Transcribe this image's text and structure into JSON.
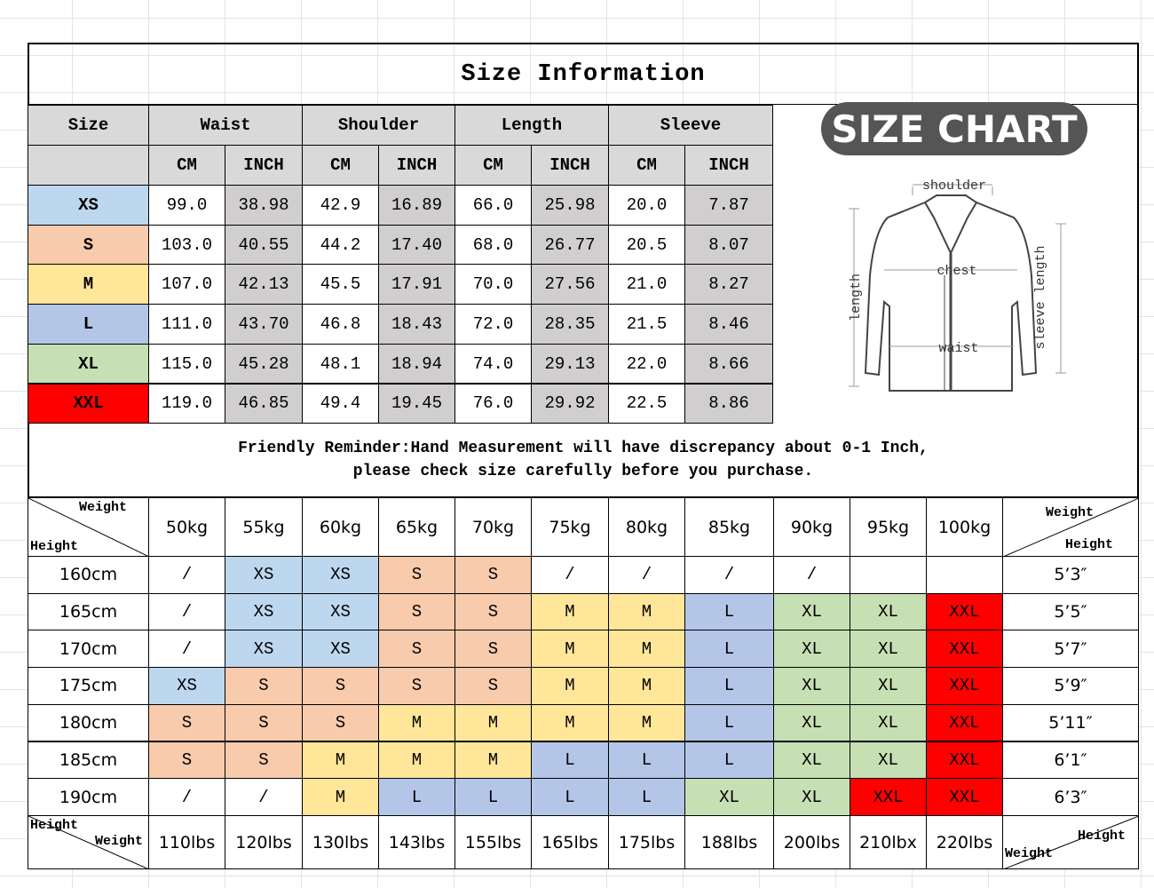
{
  "title": "Size Information",
  "badge": "SIZE CHART",
  "diagram": {
    "shoulder": "shoulder",
    "chest": "chest",
    "waist": "waist",
    "length": "length",
    "sleeve": "sleeve length"
  },
  "size_colors": {
    "XS": "#bdd7ee",
    "S": "#f8cbad",
    "M": "#ffe699",
    "L": "#b4c6e7",
    "XL": "#c6e0b4",
    "XXL": "#ff0000"
  },
  "size_table": {
    "header": [
      "Size",
      "Waist",
      "Shoulder",
      "Length",
      "Sleeve"
    ],
    "units": [
      "CM",
      "INCH",
      "CM",
      "INCH",
      "CM",
      "INCH",
      "CM",
      "INCH"
    ],
    "rows": [
      [
        "XS",
        "99.0",
        "38.98",
        "42.9",
        "16.89",
        "66.0",
        "25.98",
        "20.0",
        "7.87"
      ],
      [
        "S",
        "103.0",
        "40.55",
        "44.2",
        "17.40",
        "68.0",
        "26.77",
        "20.5",
        "8.07"
      ],
      [
        "M",
        "107.0",
        "42.13",
        "45.5",
        "17.91",
        "70.0",
        "27.56",
        "21.0",
        "8.27"
      ],
      [
        "L",
        "111.0",
        "43.70",
        "46.8",
        "18.43",
        "72.0",
        "28.35",
        "21.5",
        "8.46"
      ],
      [
        "XL",
        "115.0",
        "45.28",
        "48.1",
        "18.94",
        "74.0",
        "29.13",
        "22.0",
        "8.66"
      ],
      [
        "XXL",
        "119.0",
        "46.85",
        "49.4",
        "19.45",
        "76.0",
        "29.92",
        "22.5",
        "8.86"
      ]
    ]
  },
  "reminder": [
    "Friendly Reminder:Hand Measurement will have discrepancy about 0-1 Inch,",
    "please check size carefully before you purchase."
  ],
  "fit_table": {
    "corners": [
      {
        "top": "Weight",
        "bottom": "Height"
      },
      {
        "top": "Weight",
        "bottom": "Height"
      },
      {
        "top": "Height",
        "bottom": "Weight"
      },
      {
        "top": "Height",
        "bottom": "Weight"
      }
    ],
    "weights_kg": [
      "50kg",
      "55kg",
      "60kg",
      "65kg",
      "70kg",
      "75kg",
      "80kg",
      "85kg",
      "90kg",
      "95kg",
      "100kg"
    ],
    "rows": [
      {
        "height": "160cm",
        "sizes": [
          "/",
          "XS",
          "XS",
          "S",
          "S",
          "/",
          "/",
          "/",
          "/",
          null,
          null
        ],
        "feet": "5’3″"
      },
      {
        "height": "165cm",
        "sizes": [
          "/",
          "XS",
          "XS",
          "S",
          "S",
          "M",
          "M",
          "L",
          "XL",
          "XL",
          "XXL"
        ],
        "feet": "5’5″"
      },
      {
        "height": "170cm",
        "sizes": [
          "/",
          "XS",
          "XS",
          "S",
          "S",
          "M",
          "M",
          "L",
          "XL",
          "XL",
          "XXL"
        ],
        "feet": "5’7″"
      },
      {
        "height": "175cm",
        "sizes": [
          "XS",
          "S",
          "S",
          "S",
          "S",
          "M",
          "M",
          "L",
          "XL",
          "XL",
          "XXL"
        ],
        "feet": "5’9″"
      },
      {
        "height": "180cm",
        "sizes": [
          "S",
          "S",
          "S",
          "M",
          "M",
          "M",
          "M",
          "L",
          "XL",
          "XL",
          "XXL"
        ],
        "feet": "5’11″"
      },
      {
        "height": "185cm",
        "sizes": [
          "S",
          "S",
          "M",
          "M",
          "M",
          "L",
          "L",
          "L",
          "XL",
          "XL",
          "XXL"
        ],
        "feet": "6’1″"
      },
      {
        "height": "190cm",
        "sizes": [
          "/",
          "/",
          "M",
          "L",
          "L",
          "L",
          "L",
          "XL",
          "XL",
          "XXL",
          "XXL"
        ],
        "feet": "6’3″"
      }
    ],
    "weights_lbs": [
      "110lbs",
      "120lbs",
      "130lbs",
      "143lbs",
      "155lbs",
      "165lbs",
      "175lbs",
      "188lbs",
      "200lbs",
      "210lbx",
      "220lbs"
    ]
  }
}
